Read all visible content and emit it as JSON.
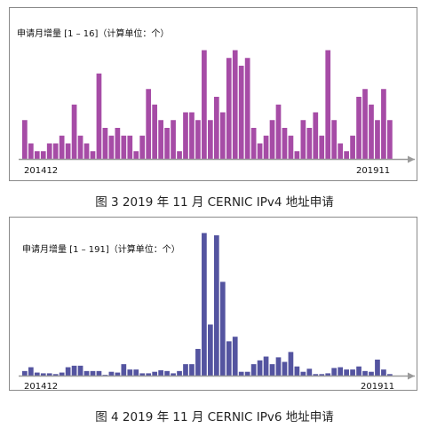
{
  "chart_data": [
    {
      "type": "bar",
      "title": "",
      "ylabel": "申请月增量 [1 – 16]（计算单位：个）",
      "ylim": [
        0,
        16
      ],
      "x_tick_labels": [
        "201412",
        "201911"
      ],
      "color": "#a64ca6",
      "categories": [
        "201412",
        "201501",
        "201502",
        "201503",
        "201504",
        "201505",
        "201506",
        "201507",
        "201508",
        "201509",
        "201510",
        "201511",
        "201512",
        "201601",
        "201602",
        "201603",
        "201604",
        "201605",
        "201606",
        "201607",
        "201608",
        "201609",
        "201610",
        "201611",
        "201612",
        "201701",
        "201702",
        "201703",
        "201704",
        "201705",
        "201706",
        "201707",
        "201708",
        "201709",
        "201710",
        "201711",
        "201712",
        "201801",
        "201802",
        "201803",
        "201804",
        "201805",
        "201806",
        "201807",
        "201808",
        "201809",
        "201810",
        "201811",
        "201812",
        "201901",
        "201902",
        "201903",
        "201904",
        "201905",
        "201906",
        "201907",
        "201908",
        "201909",
        "201910",
        "201911"
      ],
      "values": [
        5,
        2,
        1,
        1,
        2,
        2,
        3,
        2,
        7,
        3,
        2,
        1,
        11,
        4,
        3,
        4,
        3,
        3,
        1,
        3,
        9,
        7,
        5,
        4,
        5,
        1,
        6,
        6,
        5,
        14,
        5,
        8,
        6,
        13,
        14,
        12,
        13,
        4,
        2,
        3,
        5,
        7,
        4,
        3,
        1,
        5,
        4,
        6,
        3,
        14,
        5,
        2,
        1,
        3,
        8,
        9,
        7,
        5,
        9,
        5
      ]
    },
    {
      "type": "bar",
      "title": "",
      "ylabel": "申请月增量 [1 – 191]（计算单位：个）",
      "ylim": [
        0,
        191
      ],
      "x_tick_labels": [
        "201412",
        "201911"
      ],
      "color": "#5454a0",
      "categories": [
        "201412",
        "201501",
        "201502",
        "201503",
        "201504",
        "201505",
        "201506",
        "201507",
        "201508",
        "201509",
        "201510",
        "201511",
        "201512",
        "201601",
        "201602",
        "201603",
        "201604",
        "201605",
        "201606",
        "201607",
        "201608",
        "201609",
        "201610",
        "201611",
        "201612",
        "201701",
        "201702",
        "201703",
        "201704",
        "201705",
        "201706",
        "201707",
        "201708",
        "201709",
        "201710",
        "201711",
        "201712",
        "201801",
        "201802",
        "201803",
        "201804",
        "201805",
        "201806",
        "201807",
        "201808",
        "201809",
        "201810",
        "201811",
        "201812",
        "201901",
        "201902",
        "201903",
        "201904",
        "201905",
        "201906",
        "201907",
        "201908",
        "201909",
        "201910",
        "201911"
      ],
      "values": [
        6,
        11,
        4,
        3,
        3,
        2,
        4,
        11,
        13,
        13,
        6,
        6,
        6,
        1,
        5,
        4,
        15,
        8,
        8,
        3,
        3,
        5,
        7,
        6,
        3,
        6,
        15,
        15,
        35,
        187,
        67,
        184,
        123,
        45,
        51,
        5,
        5,
        15,
        20,
        25,
        15,
        24,
        18,
        31,
        12,
        5,
        9,
        2,
        2,
        3,
        10,
        11,
        8,
        8,
        12,
        6,
        5,
        21,
        8,
        2
      ]
    }
  ],
  "figure_captions": [
    "图 3  2019 年 11 月 CERNIC IPv4 地址申请",
    "图 4  2019 年 11 月 CERNIC IPv6 地址申请"
  ]
}
